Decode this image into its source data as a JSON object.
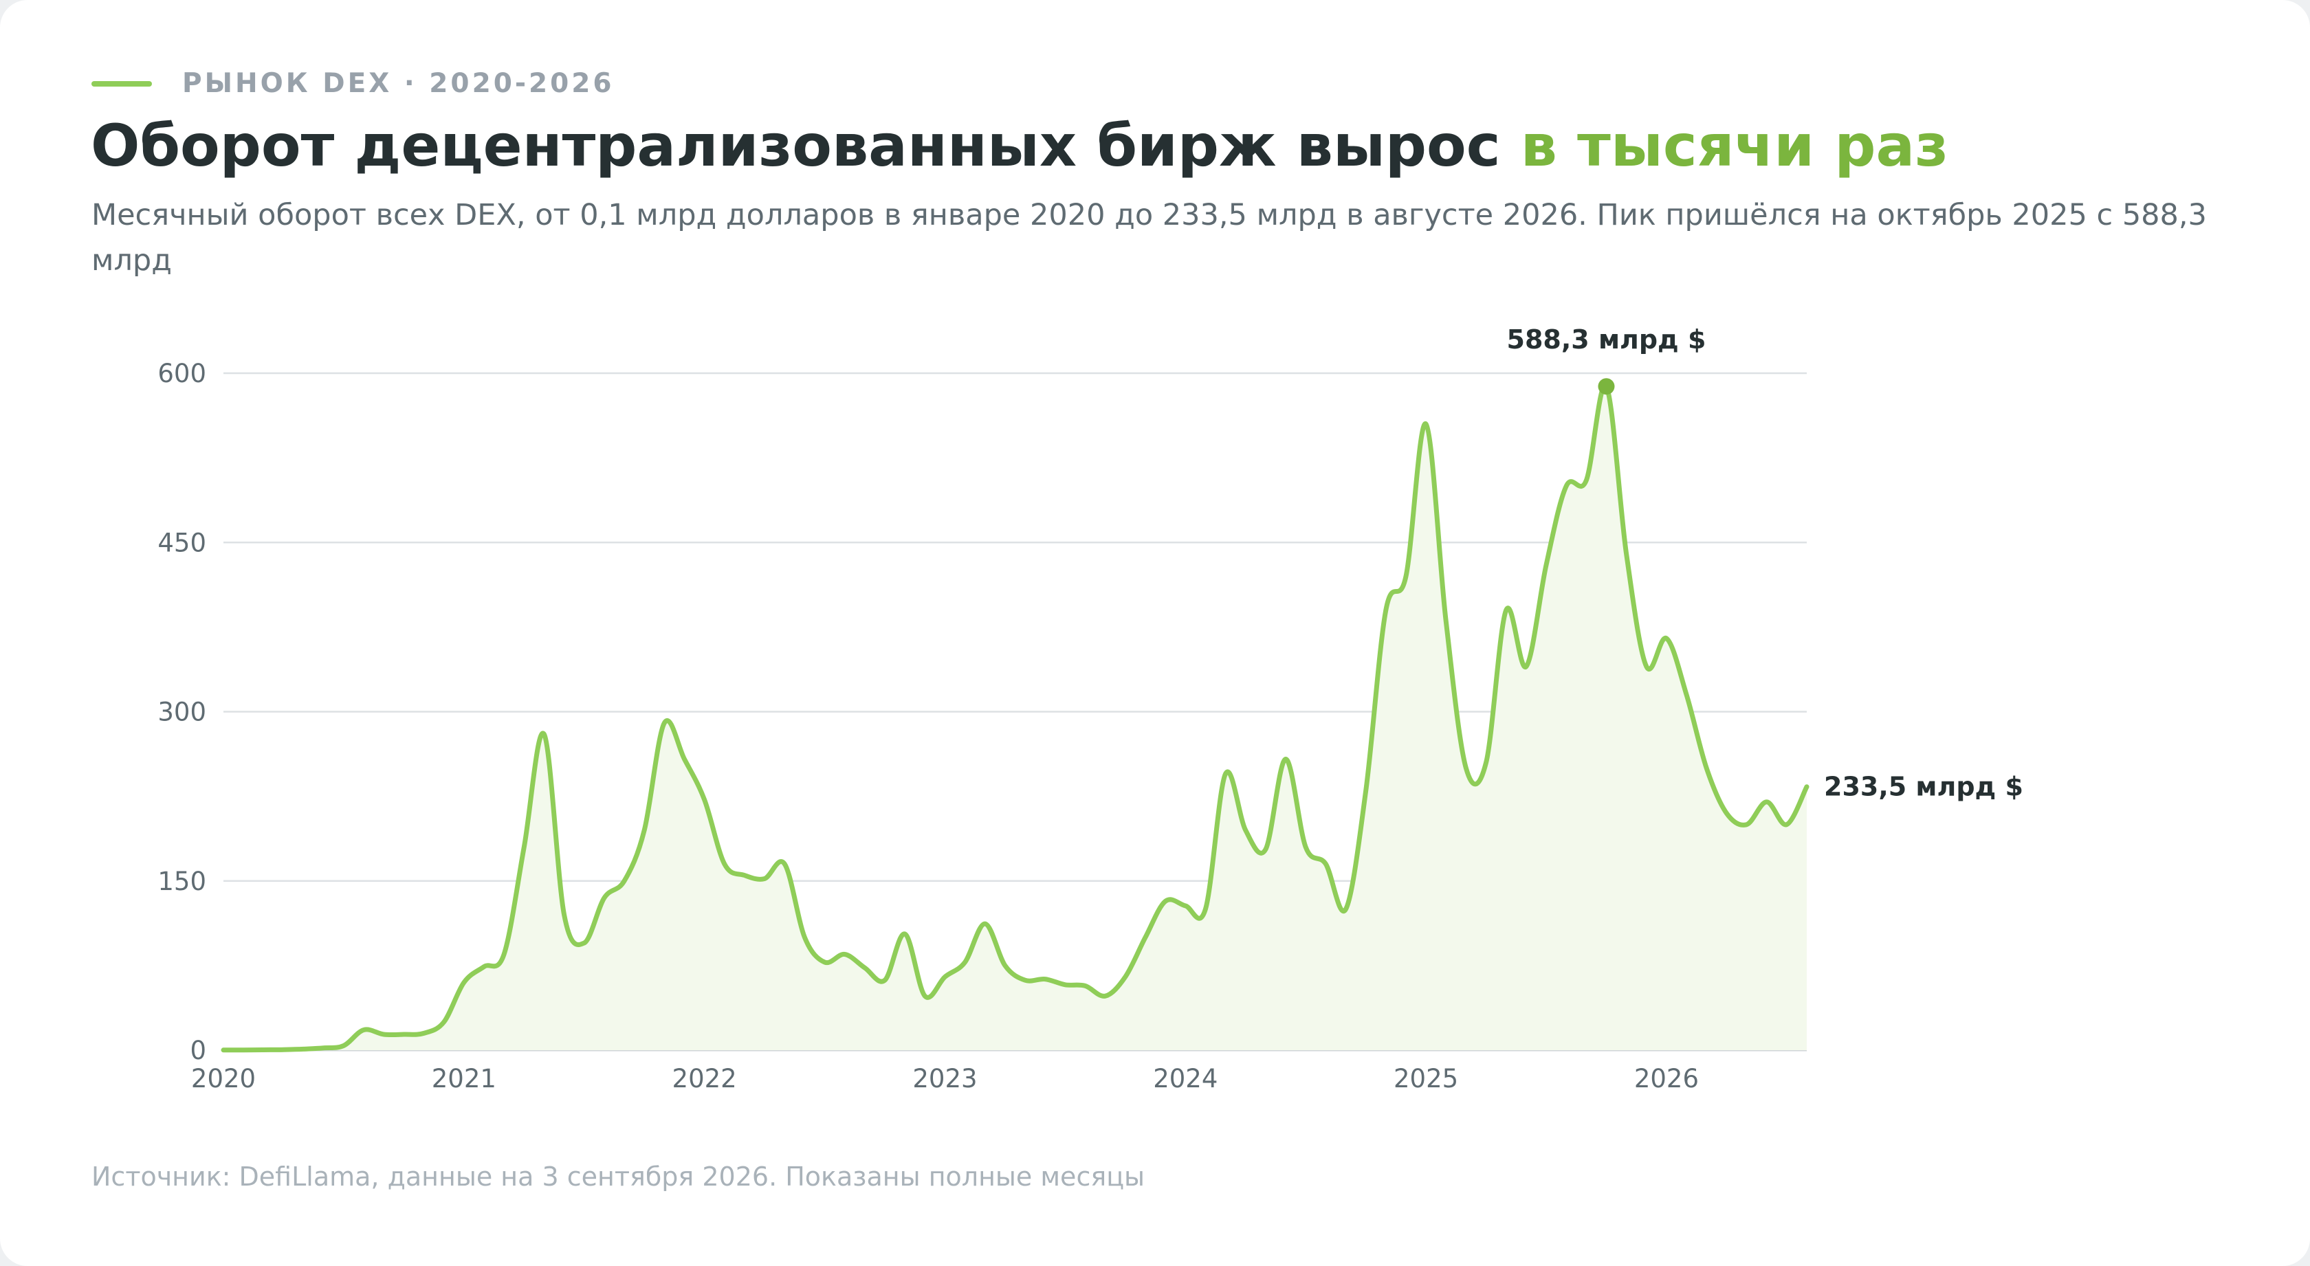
{
  "header": {
    "kicker": "РЫНОК DEX · 2020-2026",
    "title_main": "Оборот децентрализованных бирж вырос ",
    "title_accent": "в тысячи раз",
    "subtitle": "Месячный оборот всех DEX, от 0,1 млрд долларов в январе 2020 до 233,5 млрд в августе 2026. Пик пришёлся на октябрь 2025 с 588,3 млрд"
  },
  "footer": {
    "source": "Источник: DefiLlama, данные на 3 сентября 2026. Показаны полные месяцы"
  },
  "colors": {
    "accent": "#8fcd58",
    "accent_dark": "#7bb53e",
    "title": "#263032",
    "area_fill": "#f3f9ec",
    "grid": "#dde1e4"
  },
  "chart_data": {
    "type": "area",
    "title": "Оборот децентрализованных бирж вырос в тысячи раз",
    "ylim": [
      0,
      600
    ],
    "yticks": [
      0,
      150,
      300,
      450,
      600
    ],
    "ytick_labels": [
      "0",
      "150",
      "300",
      "450",
      "600"
    ],
    "xticks": [
      "2020",
      "2021",
      "2022",
      "2023",
      "2024",
      "2025",
      "2026"
    ],
    "x_start": "2020-01",
    "x_end": "2026-08",
    "grid": true,
    "annotations": {
      "peak": {
        "x": "2025-10",
        "y": 588.3,
        "label": "588,3 млрд $"
      },
      "last": {
        "x": "2026-08",
        "y": 233.5,
        "label": "233,5 млрд $"
      }
    },
    "series": [
      {
        "x": [
          "2020-01",
          "2020-02",
          "2020-03",
          "2020-04",
          "2020-05",
          "2020-06",
          "2020-07",
          "2020-08",
          "2020-09",
          "2020-10",
          "2020-11",
          "2020-12",
          "2021-01",
          "2021-02",
          "2021-03",
          "2021-04",
          "2021-05",
          "2021-06",
          "2021-07",
          "2021-08",
          "2021-09",
          "2021-10",
          "2021-11",
          "2021-12",
          "2022-01",
          "2022-02",
          "2022-03",
          "2022-04",
          "2022-05",
          "2022-06",
          "2022-07",
          "2022-08",
          "2022-09",
          "2022-10",
          "2022-11",
          "2022-12",
          "2023-01",
          "2023-02",
          "2023-03",
          "2023-04",
          "2023-05",
          "2023-06",
          "2023-07",
          "2023-08",
          "2023-09",
          "2023-10",
          "2023-11",
          "2023-12",
          "2024-01",
          "2024-02",
          "2024-03",
          "2024-04",
          "2024-05",
          "2024-06",
          "2024-07",
          "2024-08",
          "2024-09",
          "2024-10",
          "2024-11",
          "2024-12",
          "2025-01",
          "2025-02",
          "2025-03",
          "2025-04",
          "2025-05",
          "2025-06",
          "2025-07",
          "2025-08",
          "2025-09",
          "2025-10",
          "2025-11",
          "2025-12",
          "2026-01",
          "2026-02",
          "2026-03",
          "2026-04",
          "2026-05",
          "2026-06",
          "2026-07",
          "2026-08"
        ],
        "values": [
          0.1,
          0.2,
          0.3,
          0.5,
          1,
          2,
          4,
          18,
          14,
          14,
          15,
          25,
          60,
          74,
          85,
          180,
          280,
          120,
          95,
          135,
          150,
          195,
          290,
          258,
          222,
          165,
          155,
          152,
          165,
          100,
          78,
          85,
          73,
          62,
          103,
          48,
          65,
          78,
          112,
          75,
          62,
          63,
          58,
          57,
          48,
          65,
          100,
          132,
          128,
          125,
          245,
          195,
          178,
          258,
          180,
          165,
          125,
          230,
          390,
          420,
          555,
          380,
          250,
          255,
          390,
          340,
          430,
          500,
          505,
          588.3,
          440,
          340,
          365,
          315,
          250,
          210,
          200,
          220,
          200,
          233.5
        ]
      }
    ]
  }
}
